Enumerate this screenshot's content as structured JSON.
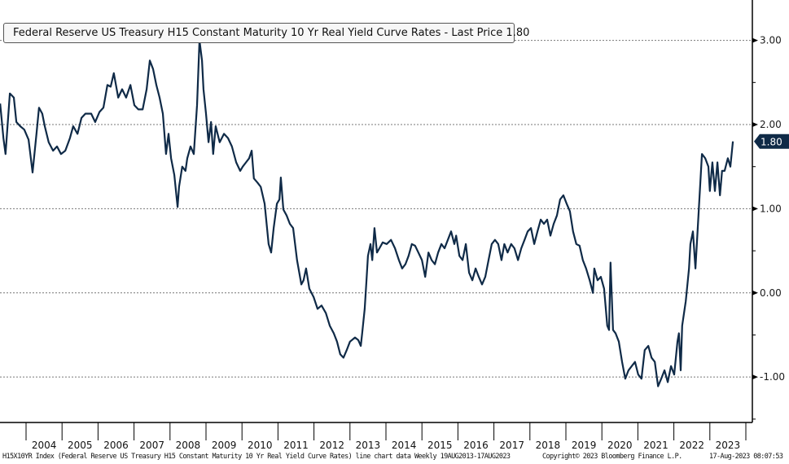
{
  "legend": {
    "label": "Federal Reserve US Treasury H15 Constant Maturity 10 Yr Real Yield Curve Rates - Last Price 1.80"
  },
  "last_price_badge": "1.80",
  "footer": {
    "description": "H15X10YR Index (Federal Reserve US Treasury H15 Constant Maturity 10 Yr Real Yield Curve Rates) line chart data  Weekly 19AUG2013-17AUG2023",
    "copyright": "Copyright© 2023 Bloomberg Finance L.P.",
    "timestamp": "17-Aug-2023 08:07:53"
  },
  "colors": {
    "line": "#0f2a47",
    "badge": "#0f2a47",
    "grid": "#777777"
  },
  "chart_data": {
    "type": "line",
    "title": "Federal Reserve US Treasury H15 Constant Maturity 10 Yr Real Yield Curve Rates",
    "xlabel": "",
    "ylabel": "",
    "ylim": [
      -1.54,
      3.48
    ],
    "xlim": [
      2003.28,
      2024.0
    ],
    "grid": true,
    "legend_position": "top-left",
    "y_ticks": [
      {
        "value": 3,
        "label": "3.00"
      },
      {
        "value": 2,
        "label": "2.00"
      },
      {
        "value": 1,
        "label": "1.00"
      },
      {
        "value": 0,
        "label": "0.00"
      },
      {
        "value": -1,
        "label": "-1.00"
      }
    ],
    "y_minor_ticks": [
      2.5,
      1.5,
      0.5,
      -0.5,
      -1.5
    ],
    "x_ticks": [
      "2004",
      "2005",
      "2006",
      "2007",
      "2008",
      "2009",
      "2010",
      "2011",
      "2012",
      "2013",
      "2014",
      "2015",
      "2016",
      "2017",
      "2018",
      "2019",
      "2020",
      "2021",
      "2022",
      "2023"
    ],
    "last_value": 1.8,
    "series": [
      {
        "name": "H15X10YR Index",
        "points": [
          [
            2003.28,
            2.25
          ],
          [
            2003.37,
            1.84
          ],
          [
            2003.43,
            1.65
          ],
          [
            2003.55,
            2.37
          ],
          [
            2003.66,
            2.32
          ],
          [
            2003.73,
            2.03
          ],
          [
            2003.84,
            1.98
          ],
          [
            2003.95,
            1.94
          ],
          [
            2004.07,
            1.82
          ],
          [
            2004.18,
            1.43
          ],
          [
            2004.29,
            1.89
          ],
          [
            2004.36,
            2.2
          ],
          [
            2004.45,
            2.13
          ],
          [
            2004.52,
            1.98
          ],
          [
            2004.63,
            1.79
          ],
          [
            2004.75,
            1.69
          ],
          [
            2004.86,
            1.74
          ],
          [
            2004.97,
            1.65
          ],
          [
            2005.09,
            1.69
          ],
          [
            2005.22,
            1.84
          ],
          [
            2005.31,
            1.98
          ],
          [
            2005.43,
            1.89
          ],
          [
            2005.54,
            2.08
          ],
          [
            2005.65,
            2.13
          ],
          [
            2005.81,
            2.13
          ],
          [
            2005.92,
            2.03
          ],
          [
            2006.04,
            2.15
          ],
          [
            2006.15,
            2.2
          ],
          [
            2006.26,
            2.47
          ],
          [
            2006.35,
            2.45
          ],
          [
            2006.44,
            2.61
          ],
          [
            2006.56,
            2.32
          ],
          [
            2006.67,
            2.42
          ],
          [
            2006.78,
            2.32
          ],
          [
            2006.9,
            2.47
          ],
          [
            2007.01,
            2.23
          ],
          [
            2007.12,
            2.18
          ],
          [
            2007.24,
            2.18
          ],
          [
            2007.35,
            2.42
          ],
          [
            2007.44,
            2.76
          ],
          [
            2007.53,
            2.66
          ],
          [
            2007.62,
            2.47
          ],
          [
            2007.71,
            2.32
          ],
          [
            2007.8,
            2.13
          ],
          [
            2007.89,
            1.65
          ],
          [
            2007.96,
            1.89
          ],
          [
            2008.03,
            1.6
          ],
          [
            2008.12,
            1.4
          ],
          [
            2008.21,
            1.02
          ],
          [
            2008.25,
            1.26
          ],
          [
            2008.34,
            1.5
          ],
          [
            2008.43,
            1.45
          ],
          [
            2008.48,
            1.6
          ],
          [
            2008.57,
            1.74
          ],
          [
            2008.66,
            1.65
          ],
          [
            2008.75,
            2.23
          ],
          [
            2008.82,
            3.0
          ],
          [
            2008.89,
            2.76
          ],
          [
            2008.93,
            2.42
          ],
          [
            2009.0,
            2.13
          ],
          [
            2009.07,
            1.79
          ],
          [
            2009.14,
            2.03
          ],
          [
            2009.2,
            1.65
          ],
          [
            2009.27,
            1.98
          ],
          [
            2009.38,
            1.79
          ],
          [
            2009.5,
            1.89
          ],
          [
            2009.61,
            1.84
          ],
          [
            2009.72,
            1.74
          ],
          [
            2009.84,
            1.55
          ],
          [
            2009.95,
            1.45
          ],
          [
            2010.02,
            1.5
          ],
          [
            2010.11,
            1.55
          ],
          [
            2010.2,
            1.6
          ],
          [
            2010.27,
            1.69
          ],
          [
            2010.33,
            1.36
          ],
          [
            2010.43,
            1.31
          ],
          [
            2010.52,
            1.26
          ],
          [
            2010.63,
            1.06
          ],
          [
            2010.74,
            0.58
          ],
          [
            2010.81,
            0.48
          ],
          [
            2010.88,
            0.77
          ],
          [
            2010.97,
            1.06
          ],
          [
            2011.04,
            1.11
          ],
          [
            2011.08,
            1.37
          ],
          [
            2011.15,
            0.99
          ],
          [
            2011.24,
            0.92
          ],
          [
            2011.33,
            0.82
          ],
          [
            2011.42,
            0.77
          ],
          [
            2011.53,
            0.39
          ],
          [
            2011.65,
            0.1
          ],
          [
            2011.71,
            0.15
          ],
          [
            2011.78,
            0.29
          ],
          [
            2011.87,
            0.05
          ],
          [
            2011.99,
            -0.05
          ],
          [
            2012.1,
            -0.19
          ],
          [
            2012.21,
            -0.15
          ],
          [
            2012.33,
            -0.24
          ],
          [
            2012.44,
            -0.39
          ],
          [
            2012.55,
            -0.48
          ],
          [
            2012.64,
            -0.58
          ],
          [
            2012.73,
            -0.73
          ],
          [
            2012.82,
            -0.77
          ],
          [
            2012.91,
            -0.68
          ],
          [
            2013.0,
            -0.58
          ],
          [
            2013.14,
            -0.53
          ],
          [
            2013.23,
            -0.56
          ],
          [
            2013.3,
            -0.63
          ],
          [
            2013.34,
            -0.48
          ],
          [
            2013.41,
            -0.19
          ],
          [
            2013.46,
            0.15
          ],
          [
            2013.5,
            0.44
          ],
          [
            2013.57,
            0.58
          ],
          [
            2013.62,
            0.39
          ],
          [
            2013.68,
            0.77
          ],
          [
            2013.75,
            0.48
          ],
          [
            2013.82,
            0.53
          ],
          [
            2013.91,
            0.6
          ],
          [
            2014.02,
            0.58
          ],
          [
            2014.14,
            0.63
          ],
          [
            2014.25,
            0.53
          ],
          [
            2014.36,
            0.39
          ],
          [
            2014.45,
            0.29
          ],
          [
            2014.54,
            0.34
          ],
          [
            2014.63,
            0.44
          ],
          [
            2014.72,
            0.58
          ],
          [
            2014.81,
            0.56
          ],
          [
            2014.9,
            0.48
          ],
          [
            2015.0,
            0.39
          ],
          [
            2015.09,
            0.19
          ],
          [
            2015.18,
            0.48
          ],
          [
            2015.27,
            0.39
          ],
          [
            2015.36,
            0.34
          ],
          [
            2015.45,
            0.48
          ],
          [
            2015.54,
            0.58
          ],
          [
            2015.63,
            0.53
          ],
          [
            2015.72,
            0.63
          ],
          [
            2015.81,
            0.73
          ],
          [
            2015.9,
            0.58
          ],
          [
            2015.95,
            0.68
          ],
          [
            2016.04,
            0.44
          ],
          [
            2016.13,
            0.39
          ],
          [
            2016.22,
            0.58
          ],
          [
            2016.31,
            0.24
          ],
          [
            2016.4,
            0.15
          ],
          [
            2016.49,
            0.29
          ],
          [
            2016.58,
            0.19
          ],
          [
            2016.67,
            0.1
          ],
          [
            2016.76,
            0.19
          ],
          [
            2016.85,
            0.39
          ],
          [
            2016.94,
            0.58
          ],
          [
            2017.03,
            0.63
          ],
          [
            2017.12,
            0.58
          ],
          [
            2017.21,
            0.39
          ],
          [
            2017.29,
            0.58
          ],
          [
            2017.38,
            0.48
          ],
          [
            2017.48,
            0.58
          ],
          [
            2017.57,
            0.53
          ],
          [
            2017.67,
            0.39
          ],
          [
            2017.76,
            0.53
          ],
          [
            2017.85,
            0.63
          ],
          [
            2017.94,
            0.73
          ],
          [
            2018.03,
            0.77
          ],
          [
            2018.12,
            0.58
          ],
          [
            2018.21,
            0.73
          ],
          [
            2018.3,
            0.87
          ],
          [
            2018.39,
            0.82
          ],
          [
            2018.48,
            0.87
          ],
          [
            2018.57,
            0.68
          ],
          [
            2018.66,
            0.82
          ],
          [
            2018.75,
            0.92
          ],
          [
            2018.84,
            1.11
          ],
          [
            2018.93,
            1.16
          ],
          [
            2019.02,
            1.06
          ],
          [
            2019.11,
            0.97
          ],
          [
            2019.2,
            0.73
          ],
          [
            2019.29,
            0.58
          ],
          [
            2019.38,
            0.56
          ],
          [
            2019.47,
            0.39
          ],
          [
            2019.56,
            0.29
          ],
          [
            2019.66,
            0.15
          ],
          [
            2019.75,
            0.0
          ],
          [
            2019.79,
            0.29
          ],
          [
            2019.88,
            0.15
          ],
          [
            2019.97,
            0.19
          ],
          [
            2020.06,
            0.05
          ],
          [
            2020.15,
            -0.39
          ],
          [
            2020.2,
            -0.44
          ],
          [
            2020.24,
            0.36
          ],
          [
            2020.31,
            -0.44
          ],
          [
            2020.38,
            -0.48
          ],
          [
            2020.47,
            -0.58
          ],
          [
            2020.56,
            -0.82
          ],
          [
            2020.65,
            -1.02
          ],
          [
            2020.74,
            -0.92
          ],
          [
            2020.83,
            -0.87
          ],
          [
            2020.92,
            -0.82
          ],
          [
            2021.01,
            -0.97
          ],
          [
            2021.1,
            -1.02
          ],
          [
            2021.19,
            -0.68
          ],
          [
            2021.29,
            -0.63
          ],
          [
            2021.38,
            -0.77
          ],
          [
            2021.47,
            -0.82
          ],
          [
            2021.56,
            -1.11
          ],
          [
            2021.65,
            -1.02
          ],
          [
            2021.74,
            -0.92
          ],
          [
            2021.83,
            -1.06
          ],
          [
            2021.92,
            -0.87
          ],
          [
            2022.01,
            -0.97
          ],
          [
            2022.1,
            -0.58
          ],
          [
            2022.14,
            -0.48
          ],
          [
            2022.19,
            -0.92
          ],
          [
            2022.23,
            -0.39
          ],
          [
            2022.33,
            -0.1
          ],
          [
            2022.42,
            0.29
          ],
          [
            2022.46,
            0.58
          ],
          [
            2022.53,
            0.73
          ],
          [
            2022.6,
            0.29
          ],
          [
            2022.69,
            0.97
          ],
          [
            2022.78,
            1.65
          ],
          [
            2022.87,
            1.6
          ],
          [
            2022.96,
            1.5
          ],
          [
            2023.0,
            1.21
          ],
          [
            2023.07,
            1.55
          ],
          [
            2023.14,
            1.21
          ],
          [
            2023.21,
            1.55
          ],
          [
            2023.28,
            1.16
          ],
          [
            2023.34,
            1.45
          ],
          [
            2023.41,
            1.45
          ],
          [
            2023.5,
            1.6
          ],
          [
            2023.57,
            1.5
          ],
          [
            2023.64,
            1.8
          ]
        ]
      }
    ]
  }
}
